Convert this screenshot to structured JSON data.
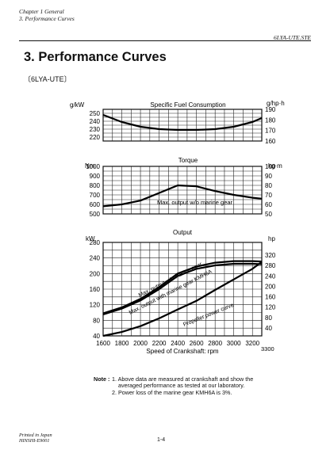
{
  "header": {
    "chapter": "Chapter 1 General",
    "section": "3. Performance Curves",
    "model_code": "6LYA-UTE.STE"
  },
  "page_title": "3. Performance Curves",
  "model_label": "〔6LYA-UTE〕",
  "charts": {
    "fuel": {
      "title": "Specific Fuel Consumption",
      "left_unit": "g/kW",
      "right_unit": "g/hp·h"
    },
    "torque": {
      "title": "Torque",
      "left_unit": "Nm",
      "right_unit": "kg·m",
      "annotation": "Max. output w/o marine gear"
    },
    "output": {
      "title": "Output",
      "left_unit": "kW",
      "right_unit": "hp",
      "annotations": [
        "Max. output w/o marine gear",
        "Max. output with marine gear KMH6A",
        "Propeller power curve"
      ]
    },
    "x_label": "Speed of Crankshaft: rpm",
    "x_extra_tick": "3300"
  },
  "chart_data": [
    {
      "type": "line",
      "title": "Specific Fuel Consumption",
      "ylabel": "g/kW",
      "y2label": "g/hp·h",
      "xlim": [
        1600,
        3300
      ],
      "ylim": [
        215,
        255
      ],
      "yticks": [
        220,
        230,
        240,
        250
      ],
      "y2ticks": [
        160,
        170,
        180,
        190
      ],
      "series": [
        {
          "x": [
            1600,
            1800,
            2000,
            2200,
            2400,
            2600,
            2800,
            3000,
            3200,
            3300
          ],
          "y": [
            248,
            239,
            233,
            230,
            229,
            229,
            230,
            233,
            239,
            244
          ]
        }
      ]
    },
    {
      "type": "line",
      "title": "Torque",
      "ylabel": "Nm",
      "y2label": "kg·m",
      "xlim": [
        1600,
        3300
      ],
      "ylim": [
        500,
        1000
      ],
      "yticks": [
        500,
        600,
        700,
        800,
        900,
        1000
      ],
      "y2ticks": [
        50,
        60,
        70,
        80,
        90,
        100
      ],
      "annotations": [
        "Max. output w/o marine gear"
      ],
      "series": [
        {
          "x": [
            1600,
            1800,
            2000,
            2200,
            2400,
            2600,
            2800,
            3000,
            3200,
            3300
          ],
          "y": [
            580,
            600,
            640,
            720,
            800,
            790,
            740,
            700,
            670,
            660
          ]
        }
      ]
    },
    {
      "type": "line",
      "title": "Output",
      "ylabel": "kW",
      "y2label": "hp",
      "xlabel": "Speed of Crankshaft: rpm",
      "xlim": [
        1600,
        3300
      ],
      "ylim": [
        40,
        280
      ],
      "xticks": [
        1600,
        1800,
        2000,
        2200,
        2400,
        2600,
        2800,
        3000,
        3200
      ],
      "yticks": [
        40,
        80,
        120,
        160,
        200,
        240,
        280
      ],
      "y2ticks": [
        40,
        80,
        120,
        160,
        200,
        240,
        280,
        320
      ],
      "series": [
        {
          "name": "Max. output w/o marine gear",
          "x": [
            1600,
            1800,
            2000,
            2200,
            2400,
            2600,
            2800,
            3000,
            3200,
            3300
          ],
          "y": [
            98,
            113,
            135,
            165,
            200,
            218,
            228,
            232,
            232,
            231
          ]
        },
        {
          "name": "Max. output with marine gear KMH6A",
          "x": [
            1600,
            1800,
            2000,
            2200,
            2400,
            2600,
            2800,
            3000,
            3200,
            3300
          ],
          "y": [
            95,
            110,
            131,
            160,
            194,
            212,
            221,
            225,
            225,
            224
          ]
        },
        {
          "name": "Propeller power curve",
          "x": [
            1600,
            1800,
            2000,
            2200,
            2400,
            2600,
            2800,
            3000,
            3200,
            3300
          ],
          "y": [
            40,
            50,
            65,
            85,
            108,
            130,
            158,
            185,
            212,
            230
          ]
        }
      ]
    }
  ],
  "notes": {
    "label": "Note :",
    "items": [
      "1. Above data are measured at crankshaft and show the",
      "averaged performance as tested at our laboratory.",
      "2. Power loss of the marine gear KMH6A is 3%."
    ]
  },
  "footer": {
    "printed": "Printed in Japan",
    "doc_code": "HINSHI-E9001",
    "page": "1-4"
  }
}
